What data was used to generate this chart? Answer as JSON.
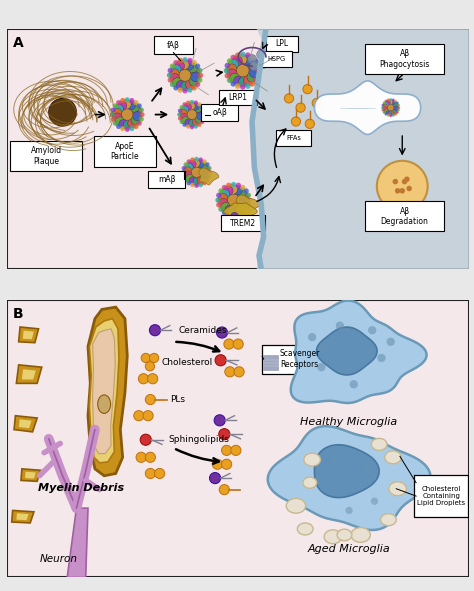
{
  "bg_top": "#f5e8ea",
  "bg_bottom_left": "#f5e8ea",
  "bg_right_A": "#c8d5e0",
  "panel_border": "#222222",
  "title_A": "A",
  "title_B": "B",
  "label_amyloid": "Amyloid\nPlaque",
  "label_apoe": "ApoE\nParticle",
  "label_fab": "fAβ",
  "label_oab": "oAβ",
  "label_mab": "mAβ",
  "label_lpl": "LPL",
  "label_lrp1": "LRP1",
  "label_hspg": "HSPG",
  "label_trem2": "TREM2",
  "label_ffas": "FFAs",
  "label_ab_phago": "Aβ\nPhagocytosis",
  "label_ab_degrad": "Aβ\nDegradation",
  "label_ceramides": "Ceramides",
  "label_cholesterol": "Cholesterol",
  "label_pls": "PLs",
  "label_sphingo": "Sphingolipids",
  "label_myelin": "Myelin Debris",
  "label_neuron": "Neuron",
  "label_scavenger": "Scavenger\nReceptors",
  "label_healthy": "Healthy Microglia",
  "label_aged": "Aged Microglia",
  "label_lipid_drops": "Cholesterol\nContaining\nLipid Droplets",
  "myelin_outer": "#c8921a",
  "myelin_inner": "#e8d070",
  "myelin_core": "#e8c8a0",
  "neuron_color": "#c890c8",
  "neuron_border": "#a060a0",
  "cell_fill_healthy": "#a8cce8",
  "cell_border_color": "#6a9ab8",
  "nucleus_fill": "#6090b8",
  "lipid_drop_fill": "#e8e0d0",
  "lipid_drop_border": "#c8b890",
  "orange_mol": "#e8a020",
  "orange_border": "#c07010",
  "purple_mol": "#7030a0",
  "red_mol": "#d03030"
}
